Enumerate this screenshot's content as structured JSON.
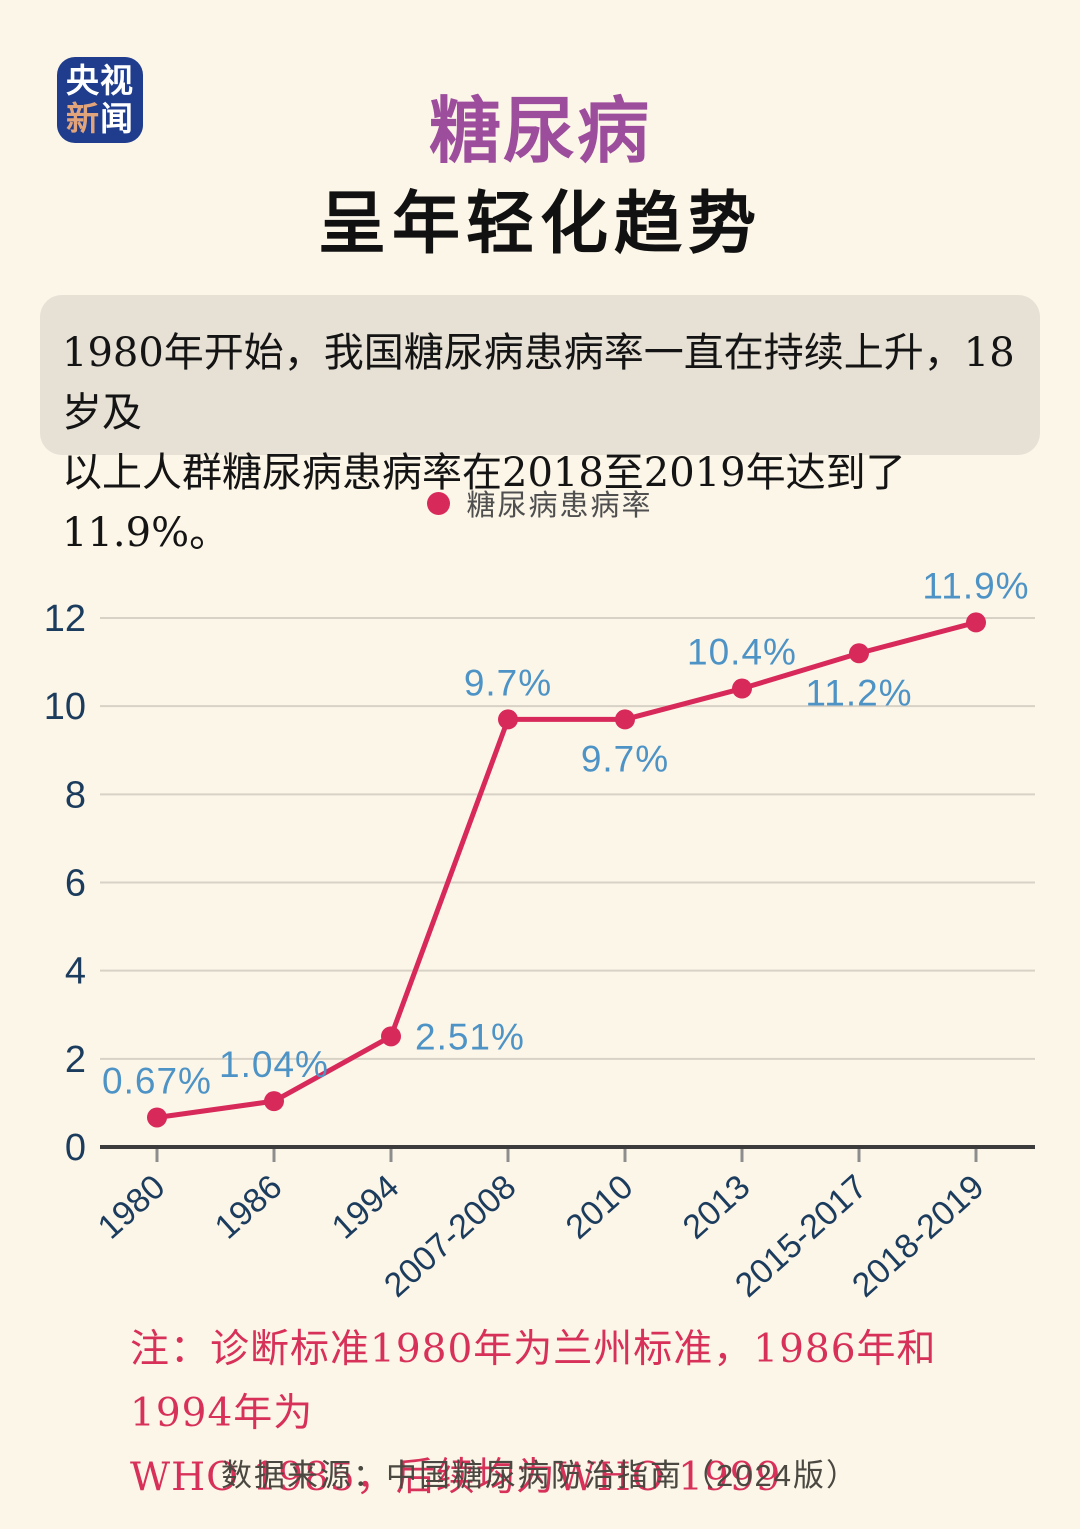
{
  "logo": {
    "line1": "央视",
    "line2_first": "新",
    "line2_rest": "闻",
    "bg_color": "#1F3D8C",
    "accent_color": "#E2A47B"
  },
  "header": {
    "title": "糖尿病",
    "subtitle": "呈年轻化趋势",
    "title_color": "#9C4D9B"
  },
  "info_box": {
    "lines": [
      "1980年开始，我国糖尿病患病率一直在持续上升，18岁及",
      "以上人群糖尿病患病率在2018至2019年达到了11.9%。"
    ]
  },
  "legend": {
    "label": "糖尿病患病率"
  },
  "chart_data": {
    "type": "line",
    "categories": [
      "1980",
      "1986",
      "1994",
      "2007-2008",
      "2010",
      "2013",
      "2015-2017",
      "2018-2019"
    ],
    "series": [
      {
        "name": "糖尿病患病率",
        "values": [
          0.67,
          1.04,
          2.51,
          9.7,
          9.7,
          10.4,
          11.2,
          11.9
        ]
      }
    ],
    "point_labels": [
      "0.67%",
      "1.04%",
      "2.51%",
      "9.7%",
      "9.7%",
      "10.4%",
      "11.2%",
      "11.9%"
    ],
    "label_placement": [
      "above",
      "above",
      "right",
      "above",
      "below",
      "above",
      "below",
      "above"
    ],
    "title": "",
    "xlabel": "",
    "ylabel": "",
    "ylim": [
      0,
      12
    ],
    "yticks": [
      0,
      2,
      4,
      6,
      8,
      10,
      12
    ],
    "grid": true,
    "legend_position": "top-center",
    "line_color": "#D8295B",
    "point_label_color": "#4E93C5",
    "axis_text_color": "#1C3C5E",
    "gridline_color": "#D8D2C6",
    "axis_line_color": "#3C3C3C"
  },
  "note": {
    "lines": [
      "注：诊断标准1980年为兰州标准，1986年和1994年为",
      "WHO 1985，后续均为WHO 1999"
    ],
    "color": "#D73059"
  },
  "source": {
    "text": "数据来源：中国糖尿病防治指南（2024版）"
  }
}
